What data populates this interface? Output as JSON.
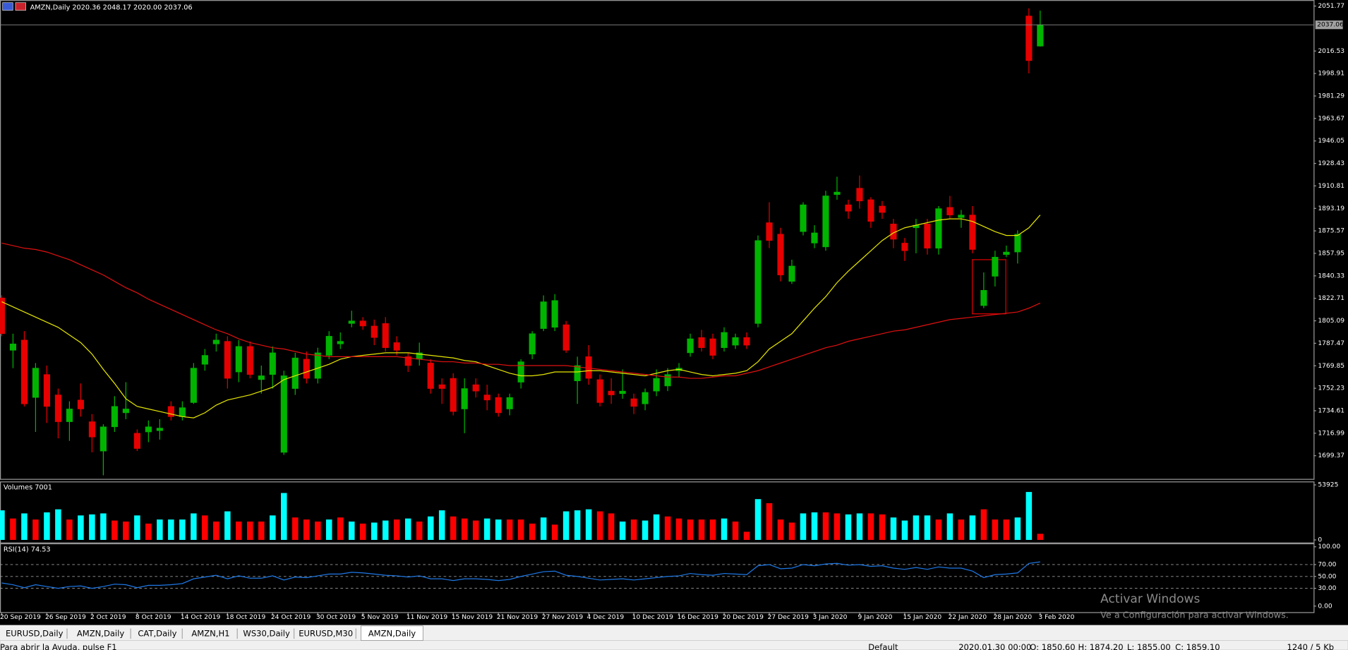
{
  "chart_data": [
    {
      "type": "candlestick",
      "title": "AMZN,Daily",
      "subtitle": "2020.36 2048.17 2020.00 2037.06",
      "categories": [
        "20 Sep 2019",
        null,
        null,
        null,
        "26 Sep 2019",
        null,
        null,
        null,
        "2 Oct 2019",
        null,
        null,
        null,
        "8 Oct 2019",
        null,
        null,
        null,
        "14 Oct 2019",
        null,
        null,
        null,
        "18 Oct 2019",
        null,
        null,
        null,
        "24 Oct 2019",
        null,
        null,
        null,
        "30 Oct 2019",
        null,
        null,
        null,
        "5 Nov 2019",
        null,
        null,
        null,
        "11 Nov 2019",
        null,
        null,
        null,
        "15 Nov 2019",
        null,
        null,
        null,
        "21 Nov 2019",
        null,
        null,
        null,
        "27 Nov 2019",
        null,
        null,
        null,
        "4 Dec 2019",
        null,
        null,
        null,
        "10 Dec 2019",
        null,
        null,
        null,
        "16 Dec 2019",
        null,
        null,
        null,
        "20 Dec 2019",
        null,
        null,
        null,
        "27 Dec 2019",
        null,
        null,
        null,
        "3 Jan 2020",
        null,
        null,
        null,
        "9 Jan 2020",
        null,
        null,
        null,
        "15 Jan 2020",
        null,
        null,
        null,
        "22 Jan 2020",
        null,
        null,
        null,
        "28 Jan 2020",
        null,
        null,
        null,
        "3 Feb 2020"
      ],
      "open": [
        1823,
        1782,
        1790,
        1745,
        1763,
        1747,
        1726,
        1743,
        1726,
        1703,
        1722,
        1733,
        1717,
        1718,
        1719,
        1738,
        1730,
        1741,
        1771,
        1787,
        1789,
        1765,
        1785,
        1759,
        1763,
        1702,
        1752,
        1775,
        1760,
        1778,
        1787,
        1803,
        1805,
        1801,
        1803,
        1788,
        1777,
        1775,
        1772,
        1755,
        1760,
        1736,
        1755,
        1747,
        1745,
        1736,
        1757,
        1779,
        1799,
        1800,
        1802,
        1758,
        1777,
        1759,
        1750,
        1748,
        1744,
        1740,
        1750,
        1754,
        1766,
        1780,
        1792,
        1791,
        1784,
        1786,
        1792,
        1803,
        1882,
        1873,
        1836,
        1875,
        1866,
        1863,
        1904,
        1896,
        1909,
        1900,
        1895,
        1881,
        1866,
        1878,
        1881,
        1862,
        1894,
        1886,
        1888,
        1817,
        1840,
        1857,
        1859,
        2044,
        2020.36
      ],
      "high": [
        1825,
        1795,
        1797,
        1772,
        1770,
        1752,
        1742,
        1756,
        1732,
        1724,
        1746,
        1757,
        1720,
        1727,
        1728,
        1742,
        1742,
        1772,
        1783,
        1795,
        1793,
        1790,
        1789,
        1770,
        1785,
        1766,
        1780,
        1781,
        1784,
        1797,
        1796,
        1813,
        1808,
        1806,
        1808,
        1793,
        1780,
        1788,
        1775,
        1760,
        1764,
        1760,
        1760,
        1755,
        1748,
        1748,
        1775,
        1797,
        1825,
        1826,
        1805,
        1777,
        1786,
        1763,
        1760,
        1767,
        1748,
        1752,
        1767,
        1768,
        1772,
        1795,
        1798,
        1795,
        1800,
        1795,
        1796,
        1872,
        1898,
        1878,
        1853,
        1898,
        1880,
        1907,
        1918,
        1900,
        1919,
        1902,
        1899,
        1885,
        1870,
        1885,
        1885,
        1895,
        1903,
        1892,
        1895,
        1843,
        1860,
        1864,
        1876,
        2050,
        2048.17
      ],
      "low": [
        1793,
        1768,
        1738,
        1718,
        1725,
        1713,
        1711,
        1730,
        1702,
        1684,
        1718,
        1728,
        1703,
        1710,
        1712,
        1727,
        1727,
        1740,
        1766,
        1781,
        1752,
        1757,
        1760,
        1748,
        1752,
        1700,
        1747,
        1756,
        1756,
        1775,
        1783,
        1800,
        1798,
        1786,
        1781,
        1778,
        1765,
        1770,
        1748,
        1740,
        1731,
        1717,
        1745,
        1735,
        1730,
        1731,
        1752,
        1775,
        1797,
        1797,
        1780,
        1740,
        1755,
        1738,
        1740,
        1744,
        1732,
        1735,
        1746,
        1750,
        1761,
        1777,
        1781,
        1775,
        1781,
        1783,
        1783,
        1800,
        1862,
        1836,
        1834,
        1872,
        1862,
        1860,
        1900,
        1885,
        1893,
        1878,
        1885,
        1862,
        1852,
        1858,
        1857,
        1857,
        1885,
        1878,
        1858,
        1815,
        1832,
        1855,
        1850,
        1999,
        2020
      ],
      "close": [
        1795,
        1787,
        1740,
        1768,
        1738,
        1726,
        1736,
        1736,
        1714,
        1722,
        1738,
        1736,
        1705,
        1722,
        1721,
        1730,
        1737,
        1768,
        1778,
        1790,
        1760,
        1785,
        1763,
        1762,
        1780,
        1762,
        1776,
        1760,
        1780,
        1793,
        1789,
        1805,
        1801,
        1792,
        1784,
        1782,
        1770,
        1780,
        1752,
        1752,
        1734,
        1752,
        1750,
        1743,
        1733,
        1745,
        1773,
        1795,
        1820,
        1821,
        1782,
        1770,
        1760,
        1741,
        1747,
        1750,
        1738,
        1749,
        1760,
        1763,
        1768,
        1791,
        1784,
        1778,
        1796,
        1792,
        1786,
        1868,
        1868,
        1841,
        1848,
        1896,
        1874,
        1903,
        1906,
        1891,
        1899,
        1883,
        1890,
        1869,
        1860,
        1880,
        1862,
        1893,
        1888,
        1888,
        1861,
        1829,
        1855,
        1859,
        1873,
        2009,
        2037.06
      ],
      "up_color": "#00b400",
      "down_color": "#e60000",
      "series": [
        {
          "color": "#e6e600",
          "values": [
            1820,
            1816,
            1812,
            1808,
            1804,
            1800,
            1794,
            1788,
            1779,
            1767,
            1756,
            1744,
            1738,
            1736,
            1734,
            1732,
            1730,
            1729,
            1733,
            1739,
            1743,
            1745,
            1747,
            1750,
            1753,
            1759,
            1762,
            1765,
            1768,
            1771,
            1775,
            1777,
            1778,
            1779,
            1780,
            1780,
            1780,
            1779,
            1778,
            1777,
            1776,
            1774,
            1773,
            1770,
            1767,
            1764,
            1762,
            1762,
            1763,
            1765,
            1765,
            1765,
            1766,
            1766,
            1765,
            1764,
            1763,
            1762,
            1764,
            1766,
            1767,
            1765,
            1763,
            1762,
            1763,
            1764,
            1766,
            1773,
            1783,
            1789,
            1795,
            1805,
            1815,
            1824,
            1835,
            1844,
            1852,
            1860,
            1868,
            1874,
            1878,
            1880,
            1882,
            1884,
            1885,
            1885,
            1883,
            1879,
            1875,
            1872,
            1872,
            1878,
            1888
          ]
        },
        {
          "color": "#e01010",
          "values": [
            1866,
            1864,
            1862,
            1861,
            1859,
            1856,
            1853,
            1849,
            1845,
            1841,
            1836,
            1831,
            1827,
            1822,
            1818,
            1814,
            1810,
            1806,
            1802,
            1798,
            1795,
            1791,
            1788,
            1786,
            1784,
            1783,
            1781,
            1779,
            1778,
            1777,
            1777,
            1777,
            1777,
            1777,
            1777,
            1777,
            1776,
            1775,
            1774,
            1773,
            1773,
            1772,
            1772,
            1771,
            1771,
            1770,
            1770,
            1770,
            1770,
            1770,
            1770,
            1769,
            1768,
            1767,
            1766,
            1765,
            1764,
            1763,
            1762,
            1761,
            1761,
            1760,
            1760,
            1761,
            1762,
            1762,
            1764,
            1766,
            1769,
            1772,
            1775,
            1778,
            1781,
            1784,
            1786,
            1789,
            1791,
            1793,
            1795,
            1797,
            1798,
            1800,
            1802,
            1804,
            1806,
            1807,
            1808,
            1809,
            1810,
            1811,
            1812,
            1815,
            1819
          ]
        }
      ],
      "last_price": 2037.06,
      "ylim": [
        1681.2,
        2055.81
      ],
      "yticks": [
        2051.77,
        2016.53,
        1998.91,
        1981.29,
        1963.67,
        1946.05,
        1928.43,
        1910.81,
        1893.19,
        1875.57,
        1857.95,
        1840.33,
        1822.71,
        1805.09,
        1787.47,
        1769.85,
        1752.23,
        1734.61,
        1716.99,
        1699.37
      ]
    },
    {
      "type": "bar",
      "title": "Volumes 7001",
      "values": [
        29000,
        21000,
        26000,
        20000,
        27000,
        30000,
        20000,
        24000,
        25000,
        26000,
        19000,
        18000,
        24000,
        16000,
        20000,
        20000,
        20000,
        26000,
        24000,
        18000,
        28000,
        18000,
        18000,
        18000,
        24000,
        46000,
        22000,
        20000,
        18000,
        20000,
        22000,
        18000,
        16000,
        17000,
        19000,
        20000,
        21000,
        18000,
        23000,
        29000,
        23000,
        21000,
        19000,
        21000,
        20000,
        20000,
        20000,
        16000,
        22000,
        15000,
        28000,
        29000,
        30000,
        28000,
        26000,
        18000,
        20000,
        19000,
        25000,
        23000,
        21000,
        20000,
        20000,
        20000,
        21000,
        18000,
        8000,
        40000,
        36000,
        20000,
        17000,
        26000,
        27000,
        27000,
        26000,
        25000,
        26000,
        26000,
        25000,
        22000,
        19000,
        24000,
        24000,
        20000,
        26000,
        20000,
        24000,
        30000,
        20000,
        20000,
        22000,
        47000,
        6000
      ],
      "colors": [
        "#00ffff",
        "#ff0000",
        "#00ffff",
        "#ff0000",
        "#00ffff",
        "#00ffff",
        "#ff0000",
        "#00ffff",
        "#00ffff",
        "#00ffff",
        "#ff0000",
        "#ff0000",
        "#00ffff",
        "#ff0000",
        "#00ffff",
        "#00ffff",
        "#00ffff",
        "#00ffff",
        "#ff0000",
        "#ff0000",
        "#00ffff",
        "#ff0000",
        "#ff0000",
        "#ff0000",
        "#00ffff",
        "#00ffff",
        "#ff0000",
        "#ff0000",
        "#ff0000",
        "#00ffff",
        "#ff0000",
        "#00ffff",
        "#ff0000",
        "#00ffff",
        "#00ffff",
        "#ff0000",
        "#00ffff",
        "#ff0000",
        "#00ffff",
        "#00ffff",
        "#ff0000",
        "#ff0000",
        "#ff0000",
        "#00ffff",
        "#00ffff",
        "#ff0000",
        "#ff0000",
        "#ff0000",
        "#00ffff",
        "#ff0000",
        "#00ffff",
        "#00ffff",
        "#00ffff",
        "#ff0000",
        "#ff0000",
        "#00ffff",
        "#ff0000",
        "#00ffff",
        "#00ffff",
        "#ff0000",
        "#ff0000",
        "#ff0000",
        "#ff0000",
        "#ff0000",
        "#00ffff",
        "#ff0000",
        "#ff0000",
        "#00ffff",
        "#ff0000",
        "#ff0000",
        "#ff0000",
        "#00ffff",
        "#00ffff",
        "#ff0000",
        "#ff0000",
        "#00ffff",
        "#00ffff",
        "#ff0000",
        "#ff0000",
        "#00ffff",
        "#00ffff",
        "#00ffff",
        "#00ffff",
        "#ff0000",
        "#00ffff",
        "#ff0000",
        "#00ffff",
        "#ff0000",
        "#ff0000",
        "#ff0000",
        "#00ffff",
        "#00ffff",
        "#ff0000"
      ],
      "ylim": [
        -2528,
        56453
      ],
      "yticks": [
        53925,
        0
      ]
    },
    {
      "type": "line",
      "title": "RSI(14) 74.53",
      "color": "#1e78e6",
      "values": [
        39,
        36,
        31,
        36,
        33,
        30,
        33,
        34,
        30,
        33,
        37,
        36,
        31,
        35,
        35,
        36,
        38,
        46,
        49,
        52,
        46,
        51,
        47,
        47,
        51,
        44,
        49,
        48,
        51,
        54,
        54,
        57,
        56,
        54,
        52,
        51,
        49,
        51,
        46,
        46,
        43,
        46,
        46,
        45,
        43,
        45,
        50,
        54,
        58,
        59,
        52,
        50,
        47,
        44,
        45,
        46,
        44,
        46,
        48,
        50,
        51,
        55,
        53,
        52,
        55,
        54,
        53,
        68,
        70,
        63,
        64,
        70,
        68,
        71,
        72,
        69,
        70,
        67,
        68,
        64,
        62,
        65,
        62,
        66,
        64,
        64,
        59,
        48,
        53,
        54,
        56,
        72,
        74.53
      ],
      "levels": [
        70,
        50,
        30
      ],
      "ylim": [
        -11.6,
        104.3
      ],
      "yticks": [
        {
          "value": 100,
          "label": "100.00"
        },
        {
          "value": 70,
          "label": "70.00"
        },
        {
          "value": 50,
          "label": "50.00"
        },
        {
          "value": 30,
          "label": "30.00"
        },
        {
          "value": 0,
          "label": "0.00"
        }
      ]
    }
  ],
  "tabs": [
    "EURUSD,Daily",
    "AMZN,Daily",
    "CAT,Daily",
    "AMZN,H1",
    "WS30,Daily",
    "EURUSD,M30",
    "AMZN,Daily"
  ],
  "status_bar": {
    "help": "Para abrir la Ayuda, pulse F1",
    "profile": "Default",
    "time": "2020.01.30 00:00",
    "open": "O: 1850.60",
    "high": "H: 1874.20",
    "low": "L: 1855.00",
    "close": "C: 1859.10",
    "traffic": "1240 / 5 Kb"
  },
  "watermark": {
    "title": "Activar Windows",
    "subtitle": "Ve a Configuración para activar Windows."
  }
}
